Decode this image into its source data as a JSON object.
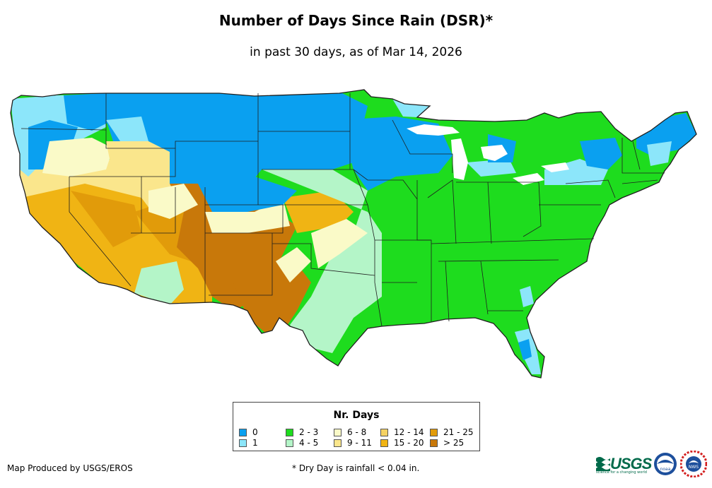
{
  "title": "Number of Days Since Rain (DSR)*",
  "subtitle": "in past 30 days, as of Mar 14, 2026",
  "legend": {
    "title": "Nr. Days",
    "classes": [
      {
        "label": "0",
        "color": "#0aa0f0"
      },
      {
        "label": "1",
        "color": "#8ce6fa"
      },
      {
        "label": "2 - 3",
        "color": "#1edc1e"
      },
      {
        "label": "4 - 5",
        "color": "#b4f5c8"
      },
      {
        "label": "6 - 8",
        "color": "#fafac8"
      },
      {
        "label": "9 - 11",
        "color": "#fae68c"
      },
      {
        "label": "12 - 14",
        "color": "#f5d264"
      },
      {
        "label": "15 - 20",
        "color": "#f0b414"
      },
      {
        "label": "21 - 25",
        "color": "#e19b0a"
      },
      {
        "label": "> 25",
        "color": "#c8780a"
      }
    ]
  },
  "credit": "Map Produced by USGS/EROS",
  "footnote": "* Dry Day is rainfall < 0.04 in.",
  "logos": {
    "usgs_text": "USGS",
    "usgs_tagline": "science for a changing world",
    "noaa_text": "noaa",
    "nws_text": "NWS"
  },
  "colors": {
    "state_border": "#1e1e1e"
  }
}
